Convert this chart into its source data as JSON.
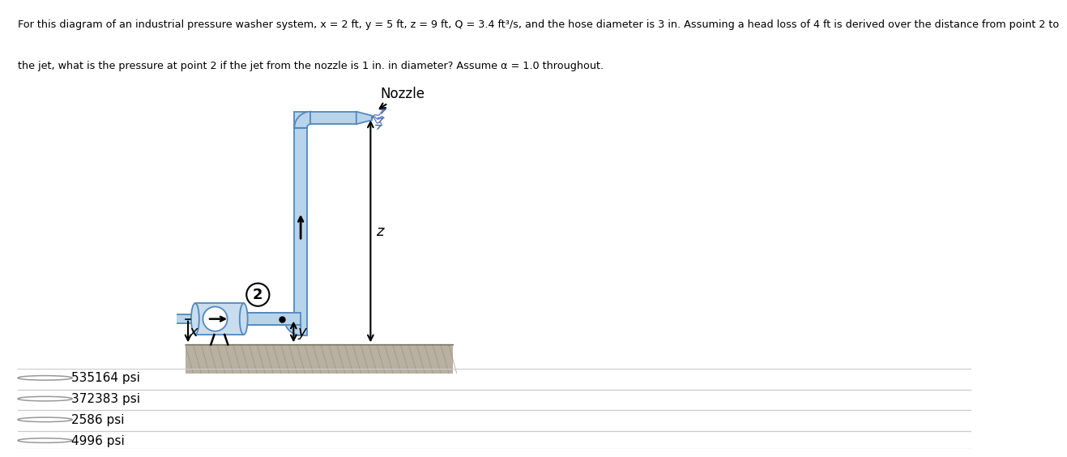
{
  "title_line1": "For this diagram of an industrial pressure washer system, x = 2 ft, y = 5 ft, z = 9 ft, Q = 3.4 ft³/s, and the hose diameter is 3 in. Assuming a head loss of 4 ft is derived over the distance from point 2 to",
  "title_line2": "the jet, what is the pressure at point 2 if the jet from the nozzle is 1 in. in diameter? Assume α = 1.0 throughout.",
  "options": [
    "535164 psi",
    "372383 psi",
    "2586 psi",
    "4996 psi"
  ],
  "bg_color": "#ffffff",
  "hose_fill": "#b8d4ea",
  "hose_edge": "#5588bb",
  "hose_dark": "#6699cc",
  "ground_fill": "#b8b0a0",
  "ground_hatch": "#999080",
  "pump_fill": "#c8ddf0",
  "pump_edge": "#5588bb",
  "arrow_color": "#000000",
  "nozzle_spray": "#4466aa"
}
